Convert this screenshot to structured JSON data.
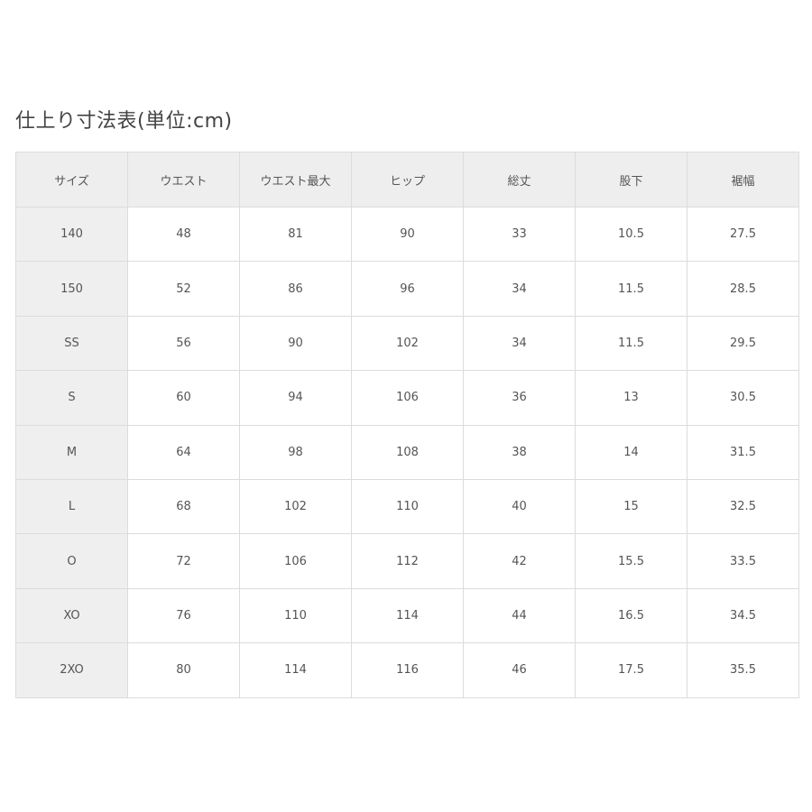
{
  "title": "仕上り寸法表(単位:cm)",
  "table": {
    "headers": [
      "サイズ",
      "ウエスト",
      "ウエスト最大",
      "ヒップ",
      "総丈",
      "股下",
      "裾幅"
    ],
    "rows": [
      [
        "140",
        "48",
        "81",
        "90",
        "33",
        "10.5",
        "27.5"
      ],
      [
        "150",
        "52",
        "86",
        "96",
        "34",
        "11.5",
        "28.5"
      ],
      [
        "SS",
        "56",
        "90",
        "102",
        "34",
        "11.5",
        "29.5"
      ],
      [
        "S",
        "60",
        "94",
        "106",
        "36",
        "13",
        "30.5"
      ],
      [
        "M",
        "64",
        "98",
        "108",
        "38",
        "14",
        "31.5"
      ],
      [
        "L",
        "68",
        "102",
        "110",
        "40",
        "15",
        "32.5"
      ],
      [
        "O",
        "72",
        "106",
        "112",
        "42",
        "15.5",
        "33.5"
      ],
      [
        "XO",
        "76",
        "110",
        "114",
        "44",
        "16.5",
        "34.5"
      ],
      [
        "2XO",
        "80",
        "114",
        "116",
        "46",
        "17.5",
        "35.5"
      ]
    ]
  }
}
